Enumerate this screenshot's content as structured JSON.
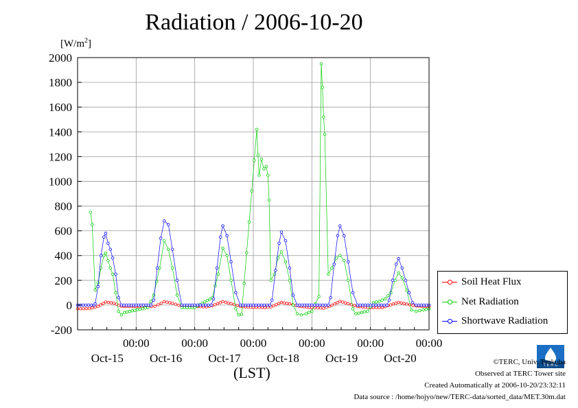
{
  "title": "Radiation / 2006-10-20",
  "unit_label": "[W/m",
  "unit_sup": "2",
  "unit_close": "]",
  "x_axis_label": "(LST)",
  "legend": {
    "soil": "Soil Heat Flux",
    "net": "Net Radiation",
    "shortwave": "Shortwave Radiation"
  },
  "colors": {
    "soil": "#ff0000",
    "net": "#00cc00",
    "shortwave": "#0000ff",
    "grid": "#999999"
  },
  "credits": {
    "copyright": "©TERC, Univ. Tsukuba",
    "observed": "Observed at TERC Tower site",
    "created": "Created Automatically at 2006-10-20/23:32:11",
    "source": "Data source : /home/hojyo/new/TERC-data/sorted_data/MET.30m.dat"
  },
  "logo_text": "T E R C",
  "chart_data": {
    "type": "line",
    "title": "Radiation / 2006-10-20",
    "ylabel": "[W/m2]",
    "xlabel": "(LST)",
    "ylim": [
      -200,
      2000
    ],
    "yticks": [
      "-200",
      "0",
      "200",
      "400",
      "600",
      "800",
      "1000",
      "1200",
      "1400",
      "1600",
      "1800",
      "2000"
    ],
    "xlim": [
      14.0,
      20.0
    ],
    "midnight_ticks": [
      {
        "x": 15.0,
        "time": "00:00",
        "day": "Oct-15"
      },
      {
        "x": 16.0,
        "time": "00:00",
        "day": "Oct-16"
      },
      {
        "x": 17.0,
        "time": "00:00",
        "day": "Oct-17"
      },
      {
        "x": 18.0,
        "time": "00:00",
        "day": "Oct-18"
      },
      {
        "x": 19.0,
        "time": "00:00",
        "day": "Oct-19"
      },
      {
        "x": 20.0,
        "time": "00:00",
        "day": "Oct-20"
      }
    ],
    "grid": true,
    "legend_position": "right",
    "series": [
      {
        "name": "Soil Heat Flux",
        "points": [
          [
            14.0,
            -30
          ],
          [
            14.2,
            -28
          ],
          [
            14.35,
            -10
          ],
          [
            14.48,
            25
          ],
          [
            14.62,
            15
          ],
          [
            14.75,
            -10
          ],
          [
            15.0,
            -12
          ],
          [
            15.2,
            -14
          ],
          [
            15.32,
            -10
          ],
          [
            15.48,
            28
          ],
          [
            15.62,
            15
          ],
          [
            15.78,
            -10
          ],
          [
            16.0,
            -12
          ],
          [
            16.2,
            -15
          ],
          [
            16.3,
            -5
          ],
          [
            16.48,
            28
          ],
          [
            16.62,
            12
          ],
          [
            16.78,
            -12
          ],
          [
            17.0,
            -18
          ],
          [
            17.2,
            -20
          ],
          [
            17.3,
            -15
          ],
          [
            17.48,
            22
          ],
          [
            17.62,
            10
          ],
          [
            17.78,
            -10
          ],
          [
            18.0,
            -20
          ],
          [
            18.2,
            -25
          ],
          [
            18.3,
            -10
          ],
          [
            18.48,
            30
          ],
          [
            18.62,
            12
          ],
          [
            18.78,
            -12
          ],
          [
            19.0,
            -20
          ],
          [
            19.2,
            -20
          ],
          [
            19.3,
            -5
          ],
          [
            19.48,
            22
          ],
          [
            19.62,
            8
          ],
          [
            19.78,
            -8
          ],
          [
            20.0,
            -12
          ]
        ]
      },
      {
        "name": "Net Radiation",
        "points": [
          [
            14.22,
            750
          ],
          [
            14.25,
            650
          ],
          [
            14.3,
            120
          ],
          [
            14.35,
            180
          ],
          [
            14.4,
            300
          ],
          [
            14.45,
            400
          ],
          [
            14.48,
            420
          ],
          [
            14.52,
            360
          ],
          [
            14.56,
            300
          ],
          [
            14.6,
            250
          ],
          [
            14.65,
            100
          ],
          [
            14.7,
            -50
          ],
          [
            14.75,
            -80
          ],
          [
            14.8,
            -60
          ],
          [
            15.2,
            -20
          ],
          [
            15.3,
            80
          ],
          [
            15.4,
            300
          ],
          [
            15.48,
            520
          ],
          [
            15.55,
            450
          ],
          [
            15.62,
            300
          ],
          [
            15.7,
            80
          ],
          [
            15.78,
            -20
          ],
          [
            16.0,
            -20
          ],
          [
            16.3,
            60
          ],
          [
            16.4,
            250
          ],
          [
            16.48,
            460
          ],
          [
            16.55,
            400
          ],
          [
            16.62,
            200
          ],
          [
            16.7,
            -30
          ],
          [
            16.75,
            -80
          ],
          [
            16.8,
            -75
          ],
          [
            17.06,
            1420
          ],
          [
            17.08,
            1210
          ],
          [
            17.1,
            1050
          ],
          [
            17.14,
            1180
          ],
          [
            17.18,
            1100
          ],
          [
            17.22,
            1120
          ],
          [
            17.25,
            1050
          ],
          [
            17.27,
            850
          ],
          [
            17.3,
            200
          ],
          [
            17.36,
            250
          ],
          [
            17.42,
            380
          ],
          [
            17.48,
            430
          ],
          [
            17.55,
            350
          ],
          [
            17.62,
            200
          ],
          [
            17.68,
            0
          ],
          [
            17.75,
            -70
          ],
          [
            17.82,
            -80
          ],
          [
            17.9,
            -70
          ],
          [
            18.0,
            -50
          ],
          [
            18.12,
            70
          ],
          [
            18.16,
            1950
          ],
          [
            18.18,
            1760
          ],
          [
            18.2,
            1520
          ],
          [
            18.22,
            1380
          ],
          [
            18.28,
            250
          ],
          [
            18.34,
            300
          ],
          [
            18.42,
            380
          ],
          [
            18.48,
            400
          ],
          [
            18.55,
            360
          ],
          [
            18.62,
            200
          ],
          [
            18.7,
            -30
          ],
          [
            18.75,
            -70
          ],
          [
            18.85,
            -60
          ],
          [
            18.95,
            -50
          ],
          [
            19.05,
            20
          ],
          [
            19.15,
            30
          ],
          [
            19.25,
            50
          ],
          [
            19.35,
            100
          ],
          [
            19.42,
            200
          ],
          [
            19.48,
            260
          ],
          [
            19.54,
            220
          ],
          [
            19.62,
            120
          ],
          [
            19.7,
            -40
          ],
          [
            19.78,
            -50
          ],
          [
            19.9,
            -40
          ],
          [
            20.0,
            -30
          ]
        ]
      },
      {
        "name": "Shortwave Radiation",
        "points": [
          [
            14.0,
            0
          ],
          [
            14.28,
            0
          ],
          [
            14.3,
            10
          ],
          [
            14.35,
            150
          ],
          [
            14.4,
            400
          ],
          [
            14.45,
            550
          ],
          [
            14.48,
            580
          ],
          [
            14.52,
            500
          ],
          [
            14.56,
            450
          ],
          [
            14.6,
            380
          ],
          [
            14.65,
            250
          ],
          [
            14.7,
            60
          ],
          [
            14.75,
            0
          ],
          [
            15.0,
            0
          ],
          [
            15.25,
            0
          ],
          [
            15.3,
            40
          ],
          [
            15.36,
            300
          ],
          [
            15.42,
            540
          ],
          [
            15.48,
            680
          ],
          [
            15.55,
            650
          ],
          [
            15.62,
            450
          ],
          [
            15.7,
            200
          ],
          [
            15.78,
            0
          ],
          [
            16.0,
            0
          ],
          [
            16.28,
            0
          ],
          [
            16.32,
            50
          ],
          [
            16.38,
            300
          ],
          [
            16.44,
            550
          ],
          [
            16.48,
            640
          ],
          [
            16.55,
            560
          ],
          [
            16.62,
            350
          ],
          [
            16.7,
            100
          ],
          [
            16.78,
            0
          ],
          [
            17.0,
            0
          ],
          [
            17.28,
            0
          ],
          [
            17.32,
            40
          ],
          [
            17.38,
            280
          ],
          [
            17.44,
            500
          ],
          [
            17.48,
            590
          ],
          [
            17.55,
            520
          ],
          [
            17.62,
            300
          ],
          [
            17.68,
            80
          ],
          [
            17.75,
            0
          ],
          [
            18.0,
            0
          ],
          [
            18.28,
            0
          ],
          [
            18.32,
            60
          ],
          [
            18.38,
            330
          ],
          [
            18.44,
            560
          ],
          [
            18.48,
            640
          ],
          [
            18.55,
            560
          ],
          [
            18.62,
            350
          ],
          [
            18.7,
            100
          ],
          [
            18.78,
            0
          ],
          [
            19.0,
            0
          ],
          [
            19.28,
            0
          ],
          [
            19.32,
            40
          ],
          [
            19.38,
            200
          ],
          [
            19.44,
            330
          ],
          [
            19.48,
            375
          ],
          [
            19.54,
            300
          ],
          [
            19.6,
            200
          ],
          [
            19.66,
            100
          ],
          [
            19.72,
            20
          ],
          [
            19.78,
            0
          ],
          [
            20.0,
            0
          ]
        ]
      }
    ]
  }
}
